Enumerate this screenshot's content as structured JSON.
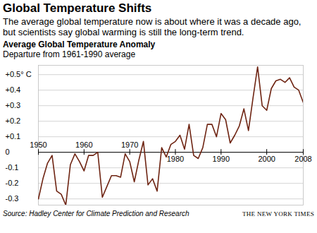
{
  "chart_data": {
    "type": "line",
    "title": "Global Temperature Shifts",
    "subtitle": "The average global temperature now is about where it was a decade ago, but scientists say global warming is still the long-term trend.",
    "y_label": "Average Global Temperature Anomaly",
    "y_sublabel": "Departure from 1961-1990 average",
    "source": "Source: Hadley Center for Climate Prediction and Research",
    "credit": "THE NEW YORK TIMES",
    "x": [
      1950,
      1951,
      1952,
      1953,
      1954,
      1955,
      1956,
      1957,
      1958,
      1959,
      1960,
      1961,
      1962,
      1963,
      1964,
      1965,
      1966,
      1967,
      1968,
      1969,
      1970,
      1971,
      1972,
      1973,
      1974,
      1975,
      1976,
      1977,
      1978,
      1979,
      1980,
      1981,
      1982,
      1983,
      1984,
      1985,
      1986,
      1987,
      1988,
      1989,
      1990,
      1991,
      1992,
      1993,
      1994,
      1995,
      1996,
      1997,
      1998,
      1999,
      2000,
      2001,
      2002,
      2003,
      2004,
      2005,
      2006,
      2007,
      2008
    ],
    "values": [
      -0.3,
      -0.17,
      -0.07,
      -0.02,
      -0.25,
      -0.27,
      -0.34,
      -0.08,
      -0.01,
      -0.06,
      -0.12,
      -0.02,
      -0.02,
      0.0,
      -0.29,
      -0.22,
      -0.15,
      -0.15,
      -0.16,
      -0.01,
      -0.06,
      -0.19,
      -0.05,
      0.07,
      -0.21,
      -0.17,
      -0.25,
      0.03,
      -0.03,
      0.05,
      0.07,
      0.11,
      0.02,
      0.18,
      -0.02,
      -0.04,
      0.03,
      0.18,
      0.18,
      0.1,
      0.25,
      0.21,
      0.06,
      0.11,
      0.17,
      0.28,
      0.14,
      0.35,
      0.55,
      0.3,
      0.27,
      0.41,
      0.46,
      0.47,
      0.45,
      0.48,
      0.42,
      0.4,
      0.32
    ],
    "color": "#6e2412",
    "xlim": [
      1950,
      2008
    ],
    "xticks": [
      1950,
      1960,
      1970,
      1980,
      1990,
      2000,
      2008
    ],
    "ylim": [
      -0.34,
      0.56
    ],
    "yticks": [
      {
        "value": 0.5,
        "label": "+0.5° C"
      },
      {
        "value": 0.4,
        "label": "+0.4"
      },
      {
        "value": 0.3,
        "label": "+0.3"
      },
      {
        "value": 0.2,
        "label": "+0.2"
      },
      {
        "value": 0.1,
        "label": "+0.1"
      },
      0,
      -0.1,
      -0.2,
      -0.3
    ],
    "grid": true
  }
}
